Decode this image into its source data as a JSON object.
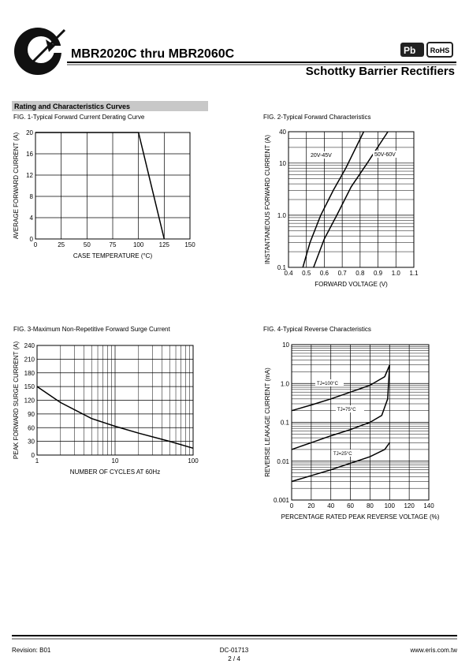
{
  "header": {
    "title": "MBR2020C thru MBR2060C",
    "subtitle": "Schottky Barrier Rectifiers",
    "badge": "RoHS"
  },
  "section": "Rating and Characteristics Curves",
  "chart_data": [
    {
      "type": "line",
      "title": "FIG. 1-Typical Forward Current Derating Curve",
      "xlabel": "CASE  TEMPERATURE (°C)",
      "ylabel": "AVERAGE FORWARD CURRENT (A)",
      "xlim": [
        0,
        150
      ],
      "xticks": [
        0,
        25,
        50,
        75,
        100,
        125,
        150
      ],
      "ylim": [
        0,
        20
      ],
      "yticks": [
        0,
        4,
        8,
        12,
        16,
        20
      ],
      "grid": true,
      "xlog": false,
      "ylog": false,
      "series": [
        {
          "color": "#000000",
          "x": [
            0,
            100,
            125
          ],
          "values": [
            20,
            20,
            0
          ]
        }
      ]
    },
    {
      "type": "line",
      "title": "FIG. 2-Typical Forward Characteristics",
      "xlabel": "FORWARD VOLTAGE (V)",
      "ylabel": "INSTANTANEOUS FORWARD CURRENT (A)",
      "xlim": [
        0.4,
        1.1
      ],
      "xticks": [
        0.4,
        0.5,
        0.6,
        0.7,
        0.8,
        0.9,
        {
          "value": 1,
          "label": "1.0"
        },
        1.1
      ],
      "ylim": [
        0.1,
        40
      ],
      "yticks": [
        0.1,
        {
          "value": 1,
          "label": "1.0"
        },
        10,
        40
      ],
      "grid": true,
      "xlog": false,
      "ylog": true,
      "series": [
        {
          "name": "20V-45V",
          "color": "#000000",
          "x": [
            0.48,
            0.52,
            0.58,
            0.65,
            0.72,
            0.82
          ],
          "values": [
            0.1,
            0.3,
            1,
            3,
            8,
            40
          ]
        },
        {
          "name": "50V-60V",
          "color": "#000000",
          "x": [
            0.54,
            0.6,
            0.67,
            0.75,
            0.84,
            0.955
          ],
          "values": [
            0.1,
            0.35,
            1,
            3.5,
            10,
            40
          ]
        }
      ]
    },
    {
      "type": "line",
      "title": "FIG. 3-Maximum Non-Repetitive Forward Surge Current",
      "xlabel": "NUMBER OF CYCLES AT 60Hz",
      "ylabel": "PEAK FORWARD SURGE CURRENT (A)",
      "xlim": [
        1,
        100
      ],
      "xticks": [
        1,
        10,
        100
      ],
      "ylim": [
        0,
        240
      ],
      "yticks": [
        0,
        30,
        60,
        90,
        120,
        150,
        180,
        210,
        240
      ],
      "grid": true,
      "xlog": true,
      "ylog": false,
      "series": [
        {
          "color": "#000000",
          "x": [
            1,
            2,
            5,
            10,
            20,
            50,
            100
          ],
          "values": [
            150,
            115,
            80,
            63,
            48,
            30,
            15
          ]
        }
      ]
    },
    {
      "type": "line",
      "title": "FIG. 4-Typical Reverse Characteristics",
      "xlabel": "PERCENTAGE RATED PEAK REVERSE VOLTAGE (%)",
      "ylabel": "REVERSE LEAKAGE CURRENT (mA)",
      "xlim": [
        0,
        140
      ],
      "xticks": [
        0,
        20,
        40,
        60,
        80,
        100,
        120,
        140
      ],
      "ylim": [
        0.001,
        10
      ],
      "yticks": [
        0.001,
        0.01,
        0.1,
        {
          "value": 1,
          "label": "1.0"
        },
        10
      ],
      "grid": true,
      "xlog": false,
      "ylog": true,
      "series": [
        {
          "name": "TJ=100°C",
          "color": "#000000",
          "x": [
            0,
            20,
            40,
            60,
            80,
            95,
            100
          ],
          "values": [
            0.2,
            0.28,
            0.4,
            0.6,
            0.9,
            1.5,
            3
          ]
        },
        {
          "name": "TJ=75°C",
          "color": "#000000",
          "x": [
            0,
            20,
            40,
            60,
            80,
            92,
            98,
            100
          ],
          "values": [
            0.02,
            0.03,
            0.045,
            0.065,
            0.1,
            0.15,
            0.4,
            3
          ]
        },
        {
          "name": "TJ=25°C",
          "color": "#000000",
          "x": [
            0,
            40,
            80,
            95,
            100
          ],
          "values": [
            0.003,
            0.006,
            0.013,
            0.02,
            0.03
          ]
        }
      ]
    }
  ],
  "footer": {
    "revision": "Revision: B01",
    "doc": "DC-01713",
    "page": "2 / 4",
    "url": "www.eris.com.tw"
  }
}
